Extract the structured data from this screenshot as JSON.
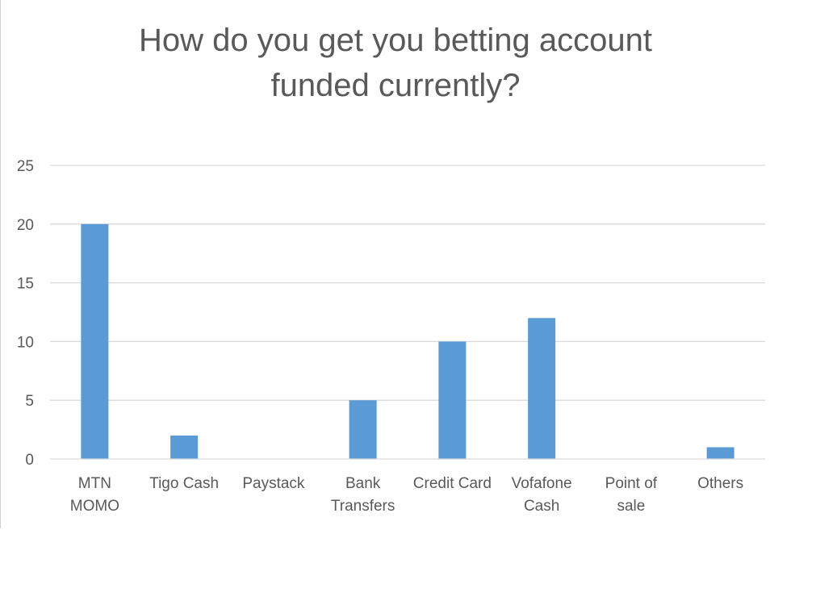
{
  "chart_data": {
    "type": "bar",
    "title": [
      "How do you get you betting account",
      "funded currently?"
    ],
    "categories": [
      [
        "MTN",
        "MOMO"
      ],
      [
        "Tigo Cash"
      ],
      [
        "Paystack"
      ],
      [
        "Bank",
        "Transfers"
      ],
      [
        "Credit Card"
      ],
      [
        "Vofafone",
        "Cash"
      ],
      [
        "Point of",
        "sale"
      ],
      [
        "Others"
      ]
    ],
    "values": [
      20,
      2,
      0,
      5,
      10,
      12,
      0,
      1
    ],
    "ylim": [
      0,
      25
    ],
    "yticks": [
      0,
      5,
      10,
      15,
      20,
      25
    ],
    "grid": true,
    "legend": "none",
    "bar_color": "#5b9bd5",
    "grid_color": "#d9d9d9",
    "text_color": "#595959"
  }
}
